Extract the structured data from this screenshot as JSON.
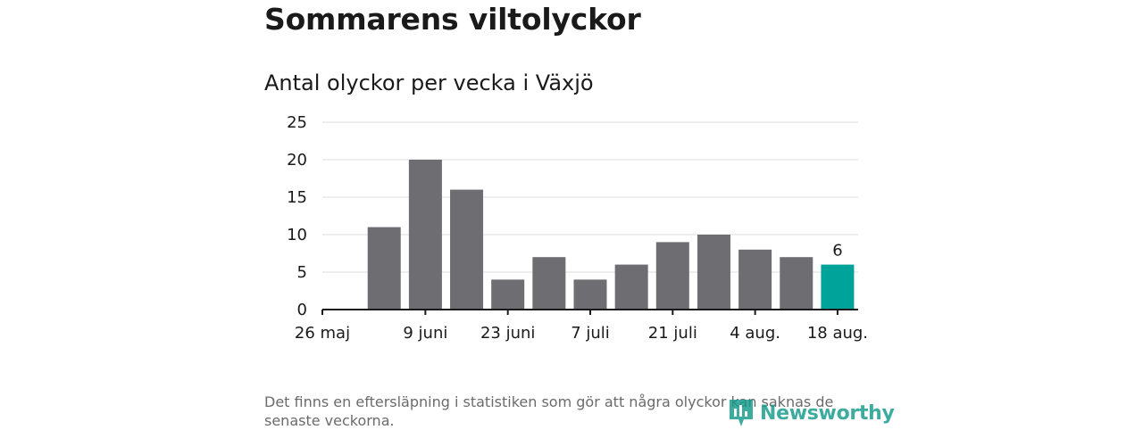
{
  "title": "Sommarens viltolyckor",
  "subtitle": "Antal olyckor per vecka i Växjö",
  "footnote": "Det finns en eftersläpning i statistiken som gör att några olyckor kan saknas de senaste veckorna.",
  "logo": {
    "text": "Newsworthy",
    "icon": "bar-chart-pin-icon",
    "color": "#139a8a"
  },
  "chart_data": {
    "type": "bar",
    "categories": [
      "26 maj",
      "2 juni",
      "9 juni",
      "16 juni",
      "23 juni",
      "30 juni",
      "7 juli",
      "14 juli",
      "21 juli",
      "28 juli",
      "4 aug.",
      "11 aug.",
      "18 aug."
    ],
    "x_tick_labels": [
      "26 maj",
      "9 juni",
      "23 juni",
      "7 juli",
      "21 juli",
      "4 aug.",
      "18 aug."
    ],
    "values": [
      null,
      11,
      20,
      16,
      4,
      7,
      4,
      6,
      9,
      10,
      8,
      7,
      6
    ],
    "highlight_index": 12,
    "data_labels": [
      {
        "index": 12,
        "text": "6"
      }
    ],
    "ylim": [
      0,
      25
    ],
    "yticks": [
      0,
      5,
      10,
      15,
      20,
      25
    ],
    "xlabel": "",
    "ylabel": "",
    "grid": true,
    "colors": {
      "bar": "#6e6d72",
      "highlight": "#00a39a",
      "grid": "#dedede",
      "axis": "#1a1a1a"
    }
  }
}
